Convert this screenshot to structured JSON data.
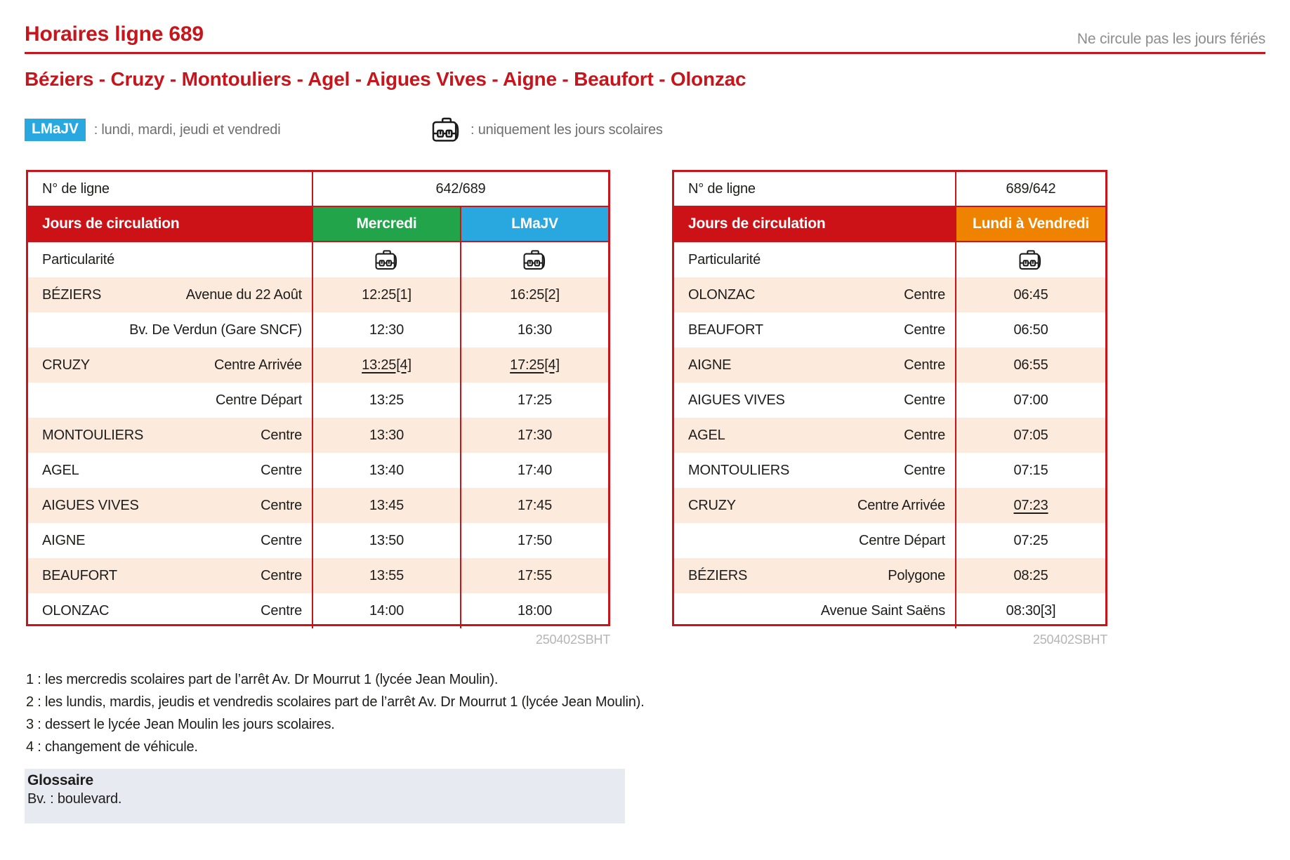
{
  "header": {
    "title": "Horaires ligne 689",
    "holiday_note": "Ne circule pas les jours fériés",
    "route": "Béziers - Cruzy - Montouliers - Agel - Aigues Vives - Aigne - Beaufort - Olonzac"
  },
  "legend": {
    "badge_label": "LMaJV",
    "badge_desc": ": lundi, mardi, jeudi et vendredi",
    "briefcase_desc": ": uniquement les jours scolaires"
  },
  "tables": [
    {
      "line_label": "N° de ligne",
      "line_value": "642/689",
      "days_label": "Jours de circulation",
      "day_columns": [
        {
          "label": "Mercredi",
          "color": "#22a44a"
        },
        {
          "label": "LMaJV",
          "color": "#29a8e0"
        }
      ],
      "particularite_label": "Particularité",
      "particularite_briefcase": [
        true,
        true
      ],
      "rows": [
        {
          "place": "BÉZIERS",
          "stop": "Avenue du 22 Août",
          "times": [
            "12:25[1]",
            "16:25[2]"
          ],
          "underlined": false
        },
        {
          "place": "",
          "stop": "Bv. De Verdun (Gare SNCF)",
          "times": [
            "12:30",
            "16:30"
          ],
          "underlined": false
        },
        {
          "place": "CRUZY",
          "stop": "Centre Arrivée",
          "times": [
            "13:25[4]",
            "17:25[4]"
          ],
          "underlined": true
        },
        {
          "place": "",
          "stop": "Centre Départ",
          "times": [
            "13:25",
            "17:25"
          ],
          "underlined": false
        },
        {
          "place": "MONTOULIERS",
          "stop": "Centre",
          "times": [
            "13:30",
            "17:30"
          ],
          "underlined": false
        },
        {
          "place": "AGEL",
          "stop": "Centre",
          "times": [
            "13:40",
            "17:40"
          ],
          "underlined": false
        },
        {
          "place": "AIGUES VIVES",
          "stop": "Centre",
          "times": [
            "13:45",
            "17:45"
          ],
          "underlined": false
        },
        {
          "place": "AIGNE",
          "stop": "Centre",
          "times": [
            "13:50",
            "17:50"
          ],
          "underlined": false
        },
        {
          "place": "BEAUFORT",
          "stop": "Centre",
          "times": [
            "13:55",
            "17:55"
          ],
          "underlined": false
        },
        {
          "place": "OLONZAC",
          "stop": "Centre",
          "times": [
            "14:00",
            "18:00"
          ],
          "underlined": false
        }
      ],
      "ref": "250402SBHT"
    },
    {
      "line_label": "N° de ligne",
      "line_value": "689/642",
      "days_label": "Jours de circulation",
      "day_columns": [
        {
          "label": "Lundi à Vendredi",
          "color": "#ef8300"
        }
      ],
      "particularite_label": "Particularité",
      "particularite_briefcase": [
        true
      ],
      "rows": [
        {
          "place": "OLONZAC",
          "stop": "Centre",
          "times": [
            "06:45"
          ],
          "underlined": false
        },
        {
          "place": "BEAUFORT",
          "stop": "Centre",
          "times": [
            "06:50"
          ],
          "underlined": false
        },
        {
          "place": "AIGNE",
          "stop": "Centre",
          "times": [
            "06:55"
          ],
          "underlined": false
        },
        {
          "place": "AIGUES VIVES",
          "stop": "Centre",
          "times": [
            "07:00"
          ],
          "underlined": false
        },
        {
          "place": "AGEL",
          "stop": "Centre",
          "times": [
            "07:05"
          ],
          "underlined": false
        },
        {
          "place": "MONTOULIERS",
          "stop": "Centre",
          "times": [
            "07:15"
          ],
          "underlined": false
        },
        {
          "place": "CRUZY",
          "stop": "Centre Arrivée",
          "times": [
            "07:23"
          ],
          "underlined": true
        },
        {
          "place": "",
          "stop": "Centre Départ",
          "times": [
            "07:25"
          ],
          "underlined": false
        },
        {
          "place": "BÉZIERS",
          "stop": "Polygone",
          "times": [
            "08:25"
          ],
          "underlined": false
        },
        {
          "place": "",
          "stop": "Avenue Saint Saëns",
          "times": [
            "08:30[3]"
          ],
          "underlined": false
        }
      ],
      "ref": "250402SBHT"
    }
  ],
  "notes": [
    "1 : les mercredis scolaires part de l’arrêt Av. Dr Mourrut 1 (lycée Jean Moulin).",
    "2 : les lundis, mardis, jeudis et vendredis scolaires part de l’arrêt Av. Dr Mourrut 1 (lycée Jean Moulin).",
    "3 : dessert le lycée Jean Moulin les jours scolaires.",
    "4 : changement de véhicule."
  ],
  "glossary": {
    "title": "Glossaire",
    "entry": "Bv. : boulevard."
  },
  "colors": {
    "red": "#c8151c",
    "header_red": "#cc1117",
    "blue": "#29a8e0",
    "green": "#22a44a",
    "orange": "#ef8300",
    "row_pink": "#fceadd",
    "gray_note": "#8d8d8d",
    "gray_legend": "#6f6f6f",
    "gray_ref": "#b5b5b5",
    "text": "#1d1d1b",
    "glossary_bg": "#e8eaf1"
  }
}
